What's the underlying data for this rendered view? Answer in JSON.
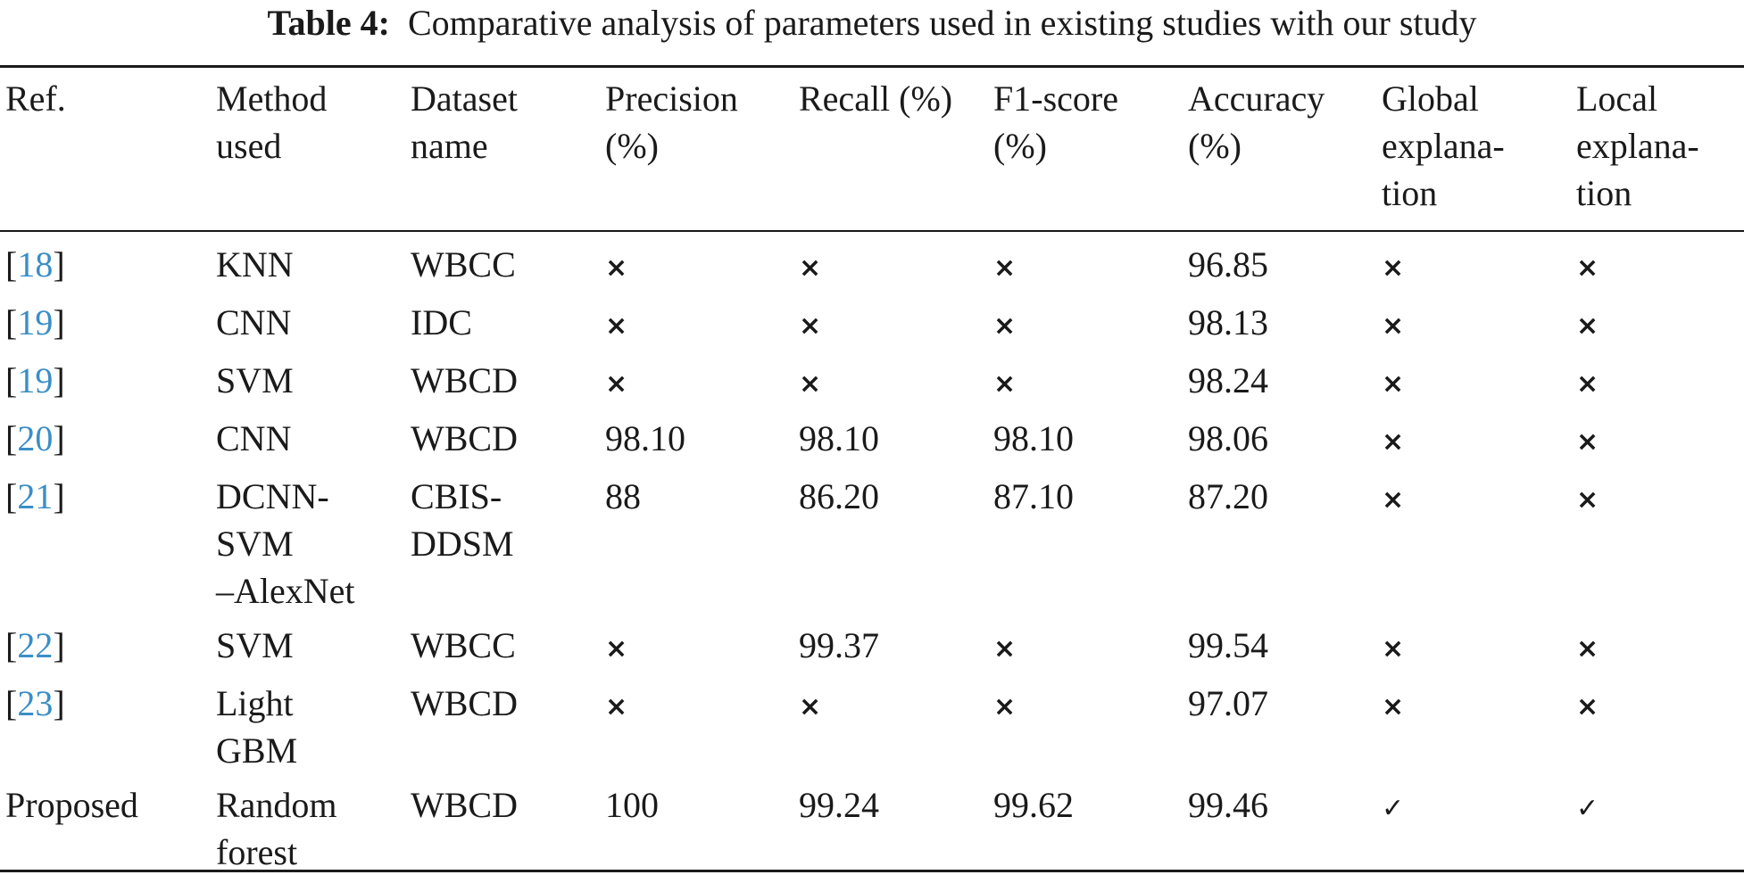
{
  "caption": {
    "label": "Table 4:",
    "text": "Comparative analysis of parameters used in existing studies with our study"
  },
  "headers": [
    "Ref.",
    "Method\nused",
    "Dataset\nname",
    "Precision\n(%)",
    "Recall (%)",
    "F1-score\n(%)",
    "Accuracy\n(%)",
    "Global\nexplana-\ntion",
    "Local\nexplana-\ntion"
  ],
  "rows": [
    {
      "ref_open": "[",
      "ref_num": "18",
      "ref_close": "]",
      "method": "KNN",
      "dataset": "WBCC",
      "precision": "×",
      "recall": "×",
      "f1": "×",
      "accuracy": "96.85",
      "global": "×",
      "local": "×"
    },
    {
      "ref_open": "[",
      "ref_num": "19",
      "ref_close": "]",
      "method": "CNN",
      "dataset": "IDC",
      "precision": "×",
      "recall": "×",
      "f1": "×",
      "accuracy": "98.13",
      "global": "×",
      "local": "×"
    },
    {
      "ref_open": "[",
      "ref_num": "19",
      "ref_close": "]",
      "method": "SVM",
      "dataset": "WBCD",
      "precision": "×",
      "recall": "×",
      "f1": "×",
      "accuracy": "98.24",
      "global": "×",
      "local": "×"
    },
    {
      "ref_open": "[",
      "ref_num": "20",
      "ref_close": "]",
      "method": "CNN",
      "dataset": "WBCD",
      "precision": "98.10",
      "recall": "98.10",
      "f1": "98.10",
      "accuracy": "98.06",
      "global": "×",
      "local": "×"
    },
    {
      "ref_open": "[",
      "ref_num": "21",
      "ref_close": "]",
      "method": "DCNN-\nSVM\n–AlexNet",
      "dataset": "CBIS-\nDDSM",
      "precision": "88",
      "recall": "86.20",
      "f1": "87.10",
      "accuracy": "87.20",
      "global": "×",
      "local": "×"
    },
    {
      "ref_open": "[",
      "ref_num": "22",
      "ref_close": "]",
      "method": "SVM",
      "dataset": "WBCC",
      "precision": "×",
      "recall": "99.37",
      "f1": "×",
      "accuracy": "99.54",
      "global": "×",
      "local": "×"
    },
    {
      "ref_open": "[",
      "ref_num": "23",
      "ref_close": "]",
      "method": "Light\nGBM",
      "dataset": "WBCD",
      "precision": "×",
      "recall": "×",
      "f1": "×",
      "accuracy": "97.07",
      "global": "×",
      "local": "×"
    },
    {
      "ref_open": "",
      "ref_num": "",
      "ref_close": "",
      "ref_text": "Proposed",
      "method": "Random\nforest",
      "dataset": "WBCD",
      "precision": "100",
      "recall": "99.24",
      "f1": "99.62",
      "accuracy": "99.46",
      "global": "✓",
      "local": "✓"
    }
  ]
}
